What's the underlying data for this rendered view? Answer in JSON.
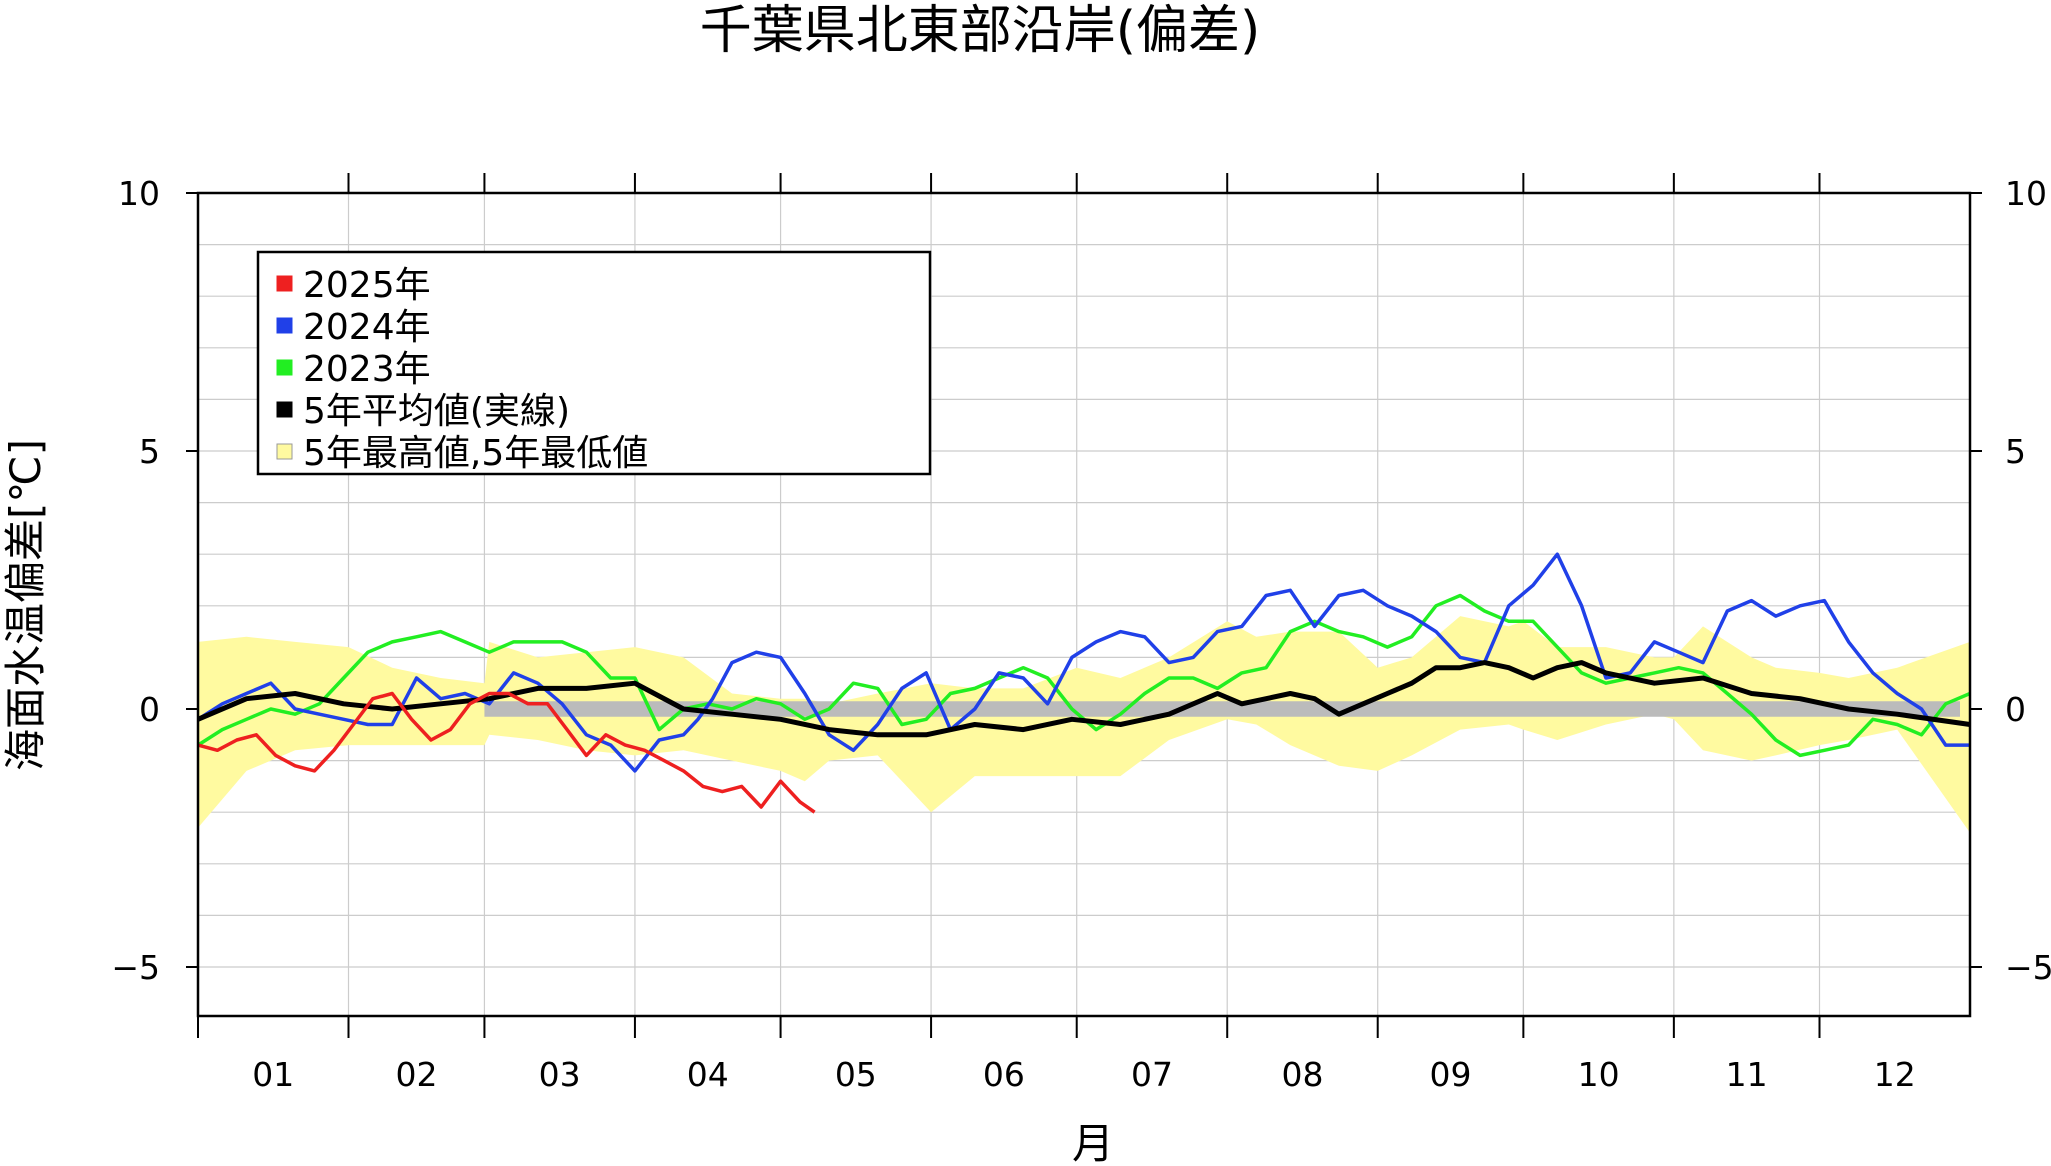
{
  "chart_data": {
    "type": "line",
    "title": "千葉県北東部沿岸(偏差)",
    "xlabel": "月",
    "ylabel": "海面水温偏差[℃]",
    "ylim": [
      -6,
      10
    ],
    "yticks": [
      10,
      5,
      0,
      -5
    ],
    "ytick_labels": [
      "10",
      "5",
      "0",
      "−5"
    ],
    "xlim": [
      0,
      365
    ],
    "months": [
      "01",
      "02",
      "03",
      "04",
      "05",
      "06",
      "07",
      "08",
      "09",
      "10",
      "11",
      "12"
    ],
    "grid": true,
    "legend_position": "top-left",
    "zero_band": {
      "from": -0.15,
      "to": 0.15,
      "color": "#bbbbbb"
    },
    "band": {
      "name": "5年最高値,5年最低値",
      "color": "#fffaa0",
      "x": [
        0,
        10,
        20,
        31,
        40,
        50,
        59,
        60,
        70,
        80,
        90,
        100,
        110,
        120,
        125,
        130,
        140,
        151,
        160,
        170,
        181,
        190,
        200,
        212,
        218,
        225,
        235,
        243,
        250,
        260,
        270,
        273,
        280,
        290,
        300,
        304,
        310,
        320,
        325,
        334,
        340,
        350,
        365
      ],
      "upper": [
        1.3,
        1.4,
        1.3,
        1.2,
        0.8,
        0.6,
        0.5,
        1.3,
        1.0,
        1.1,
        1.2,
        1.0,
        0.3,
        0.2,
        0.2,
        0.1,
        0.3,
        0.5,
        0.4,
        0.4,
        0.8,
        0.6,
        1.0,
        1.7,
        1.4,
        1.5,
        1.5,
        0.8,
        1.0,
        1.8,
        1.6,
        1.7,
        1.2,
        1.2,
        1.0,
        1.0,
        1.6,
        1.0,
        0.8,
        0.7,
        0.6,
        0.8,
        1.3
      ],
      "lower": [
        -2.3,
        -1.2,
        -0.8,
        -0.7,
        -0.7,
        -0.7,
        -0.7,
        -0.5,
        -0.6,
        -0.8,
        -0.9,
        -0.8,
        -1.0,
        -1.2,
        -1.4,
        -1.0,
        -0.9,
        -2.0,
        -1.3,
        -1.3,
        -1.3,
        -1.3,
        -0.6,
        -0.2,
        -0.3,
        -0.7,
        -1.1,
        -1.2,
        -0.9,
        -0.4,
        -0.3,
        -0.4,
        -0.6,
        -0.3,
        -0.1,
        -0.2,
        -0.8,
        -1.0,
        -0.9,
        -0.7,
        -0.6,
        -0.4,
        -2.4
      ]
    },
    "series": [
      {
        "name": "2025年",
        "color": "#ee2020",
        "x": [
          0,
          4,
          8,
          12,
          16,
          20,
          24,
          28,
          32,
          36,
          40,
          44,
          48,
          52,
          56,
          60,
          64,
          68,
          72,
          76,
          80,
          84,
          88,
          92,
          96,
          100,
          104,
          108,
          112,
          116,
          120,
          124,
          127
        ],
        "y": [
          -0.7,
          -0.8,
          -0.6,
          -0.5,
          -0.9,
          -1.1,
          -1.2,
          -0.8,
          -0.3,
          0.2,
          0.3,
          -0.2,
          -0.6,
          -0.4,
          0.1,
          0.3,
          0.3,
          0.1,
          0.1,
          -0.4,
          -0.9,
          -0.5,
          -0.7,
          -0.8,
          -1.0,
          -1.2,
          -1.5,
          -1.6,
          -1.5,
          -1.9,
          -1.4,
          -1.8,
          -2.0
        ]
      },
      {
        "name": "2024年",
        "color": "#2040e8",
        "x": [
          0,
          5,
          10,
          15,
          20,
          25,
          30,
          35,
          40,
          45,
          50,
          55,
          60,
          65,
          70,
          75,
          80,
          85,
          90,
          95,
          100,
          103,
          106,
          110,
          115,
          120,
          125,
          130,
          135,
          140,
          145,
          150,
          155,
          160,
          165,
          170,
          175,
          180,
          185,
          190,
          195,
          200,
          205,
          210,
          215,
          220,
          225,
          230,
          235,
          240,
          245,
          250,
          255,
          260,
          265,
          270,
          275,
          280,
          285,
          290,
          295,
          300,
          305,
          310,
          315,
          320,
          325,
          330,
          335,
          340,
          345,
          350,
          355,
          360,
          365
        ],
        "y": [
          -0.2,
          0.1,
          0.3,
          0.5,
          0.0,
          -0.1,
          -0.2,
          -0.3,
          -0.3,
          0.6,
          0.2,
          0.3,
          0.1,
          0.7,
          0.5,
          0.1,
          -0.5,
          -0.7,
          -1.2,
          -0.6,
          -0.5,
          -0.2,
          0.2,
          0.9,
          1.1,
          1.0,
          0.3,
          -0.5,
          -0.8,
          -0.3,
          0.4,
          0.7,
          -0.4,
          0.0,
          0.7,
          0.6,
          0.1,
          1.0,
          1.3,
          1.5,
          1.4,
          0.9,
          1.0,
          1.5,
          1.6,
          2.2,
          2.3,
          1.6,
          2.2,
          2.3,
          2.0,
          1.8,
          1.5,
          1.0,
          0.9,
          2.0,
          2.4,
          3.0,
          2.0,
          0.6,
          0.7,
          1.3,
          1.1,
          0.9,
          1.9,
          2.1,
          1.8,
          2.0,
          2.1,
          1.3,
          0.7,
          0.3,
          0.0,
          -0.7,
          -0.7
        ]
      },
      {
        "name": "2023年",
        "color": "#22ee22",
        "x": [
          0,
          5,
          10,
          15,
          20,
          25,
          30,
          35,
          40,
          45,
          50,
          55,
          60,
          65,
          70,
          75,
          80,
          85,
          90,
          95,
          100,
          105,
          110,
          115,
          120,
          125,
          130,
          135,
          140,
          145,
          150,
          155,
          160,
          165,
          170,
          175,
          180,
          185,
          190,
          195,
          200,
          205,
          210,
          215,
          220,
          225,
          230,
          235,
          240,
          245,
          250,
          255,
          260,
          265,
          270,
          275,
          280,
          285,
          290,
          295,
          300,
          305,
          310,
          315,
          320,
          325,
          330,
          335,
          340,
          345,
          350,
          355,
          360,
          365
        ],
        "y": [
          -0.7,
          -0.4,
          -0.2,
          0.0,
          -0.1,
          0.1,
          0.6,
          1.1,
          1.3,
          1.4,
          1.5,
          1.3,
          1.1,
          1.3,
          1.3,
          1.3,
          1.1,
          0.6,
          0.6,
          -0.4,
          0.0,
          0.1,
          0.0,
          0.2,
          0.1,
          -0.2,
          0.0,
          0.5,
          0.4,
          -0.3,
          -0.2,
          0.3,
          0.4,
          0.6,
          0.8,
          0.6,
          0.0,
          -0.4,
          -0.1,
          0.3,
          0.6,
          0.6,
          0.4,
          0.7,
          0.8,
          1.5,
          1.7,
          1.5,
          1.4,
          1.2,
          1.4,
          2.0,
          2.2,
          1.9,
          1.7,
          1.7,
          1.2,
          0.7,
          0.5,
          0.6,
          0.7,
          0.8,
          0.7,
          0.3,
          -0.1,
          -0.6,
          -0.9,
          -0.8,
          -0.7,
          -0.2,
          -0.3,
          -0.5,
          0.1,
          0.3
        ]
      },
      {
        "name": "5年平均値(実線)",
        "color": "#000000",
        "x": [
          0,
          10,
          20,
          30,
          40,
          50,
          60,
          70,
          80,
          90,
          100,
          110,
          120,
          130,
          140,
          150,
          160,
          170,
          180,
          190,
          200,
          210,
          215,
          220,
          225,
          230,
          235,
          240,
          245,
          250,
          255,
          260,
          265,
          270,
          275,
          280,
          285,
          290,
          300,
          310,
          320,
          330,
          340,
          350,
          365
        ],
        "y": [
          -0.2,
          0.2,
          0.3,
          0.1,
          0.0,
          0.1,
          0.2,
          0.4,
          0.4,
          0.5,
          0.0,
          -0.1,
          -0.2,
          -0.4,
          -0.5,
          -0.5,
          -0.3,
          -0.4,
          -0.2,
          -0.3,
          -0.1,
          0.3,
          0.1,
          0.2,
          0.3,
          0.2,
          -0.1,
          0.1,
          0.3,
          0.5,
          0.8,
          0.8,
          0.9,
          0.8,
          0.6,
          0.8,
          0.9,
          0.7,
          0.5,
          0.6,
          0.3,
          0.2,
          0.0,
          -0.1,
          -0.3
        ]
      }
    ],
    "legend": [
      {
        "label": "2025年",
        "color": "#ee2020"
      },
      {
        "label": "2024年",
        "color": "#2040e8"
      },
      {
        "label": "2023年",
        "color": "#22ee22"
      },
      {
        "label": "5年平均値(実線)",
        "color": "#000000"
      },
      {
        "label": "5年最高値,5年最低値",
        "color": "#fffaa0"
      }
    ]
  }
}
